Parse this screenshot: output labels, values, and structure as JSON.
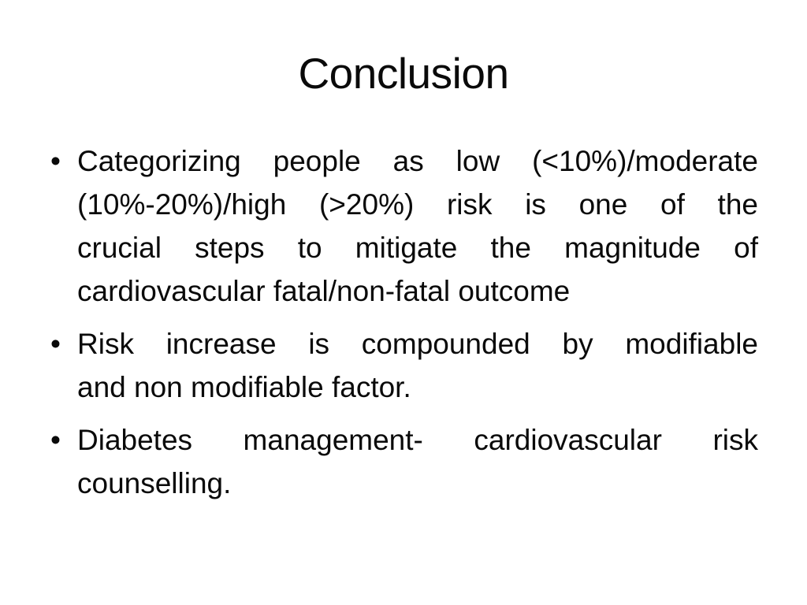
{
  "slide": {
    "title": "Conclusion",
    "bullet_char": "•",
    "colors": {
      "background": "#ffffff",
      "text": "#0a0a0a"
    },
    "bullets": [
      {
        "lines": [
          "Categorizing people as low (<10%)/moderate",
          "(10%-20%)/high (>20%) risk is one of the",
          "crucial steps to mitigate the magnitude of",
          "cardiovascular fatal/non-fatal outcome"
        ]
      },
      {
        "lines": [
          "Risk increase is compounded by modifiable",
          "and non modifiable factor."
        ]
      },
      {
        "lines": [
          "Diabetes management- cardiovascular risk",
          "counselling."
        ]
      }
    ]
  }
}
